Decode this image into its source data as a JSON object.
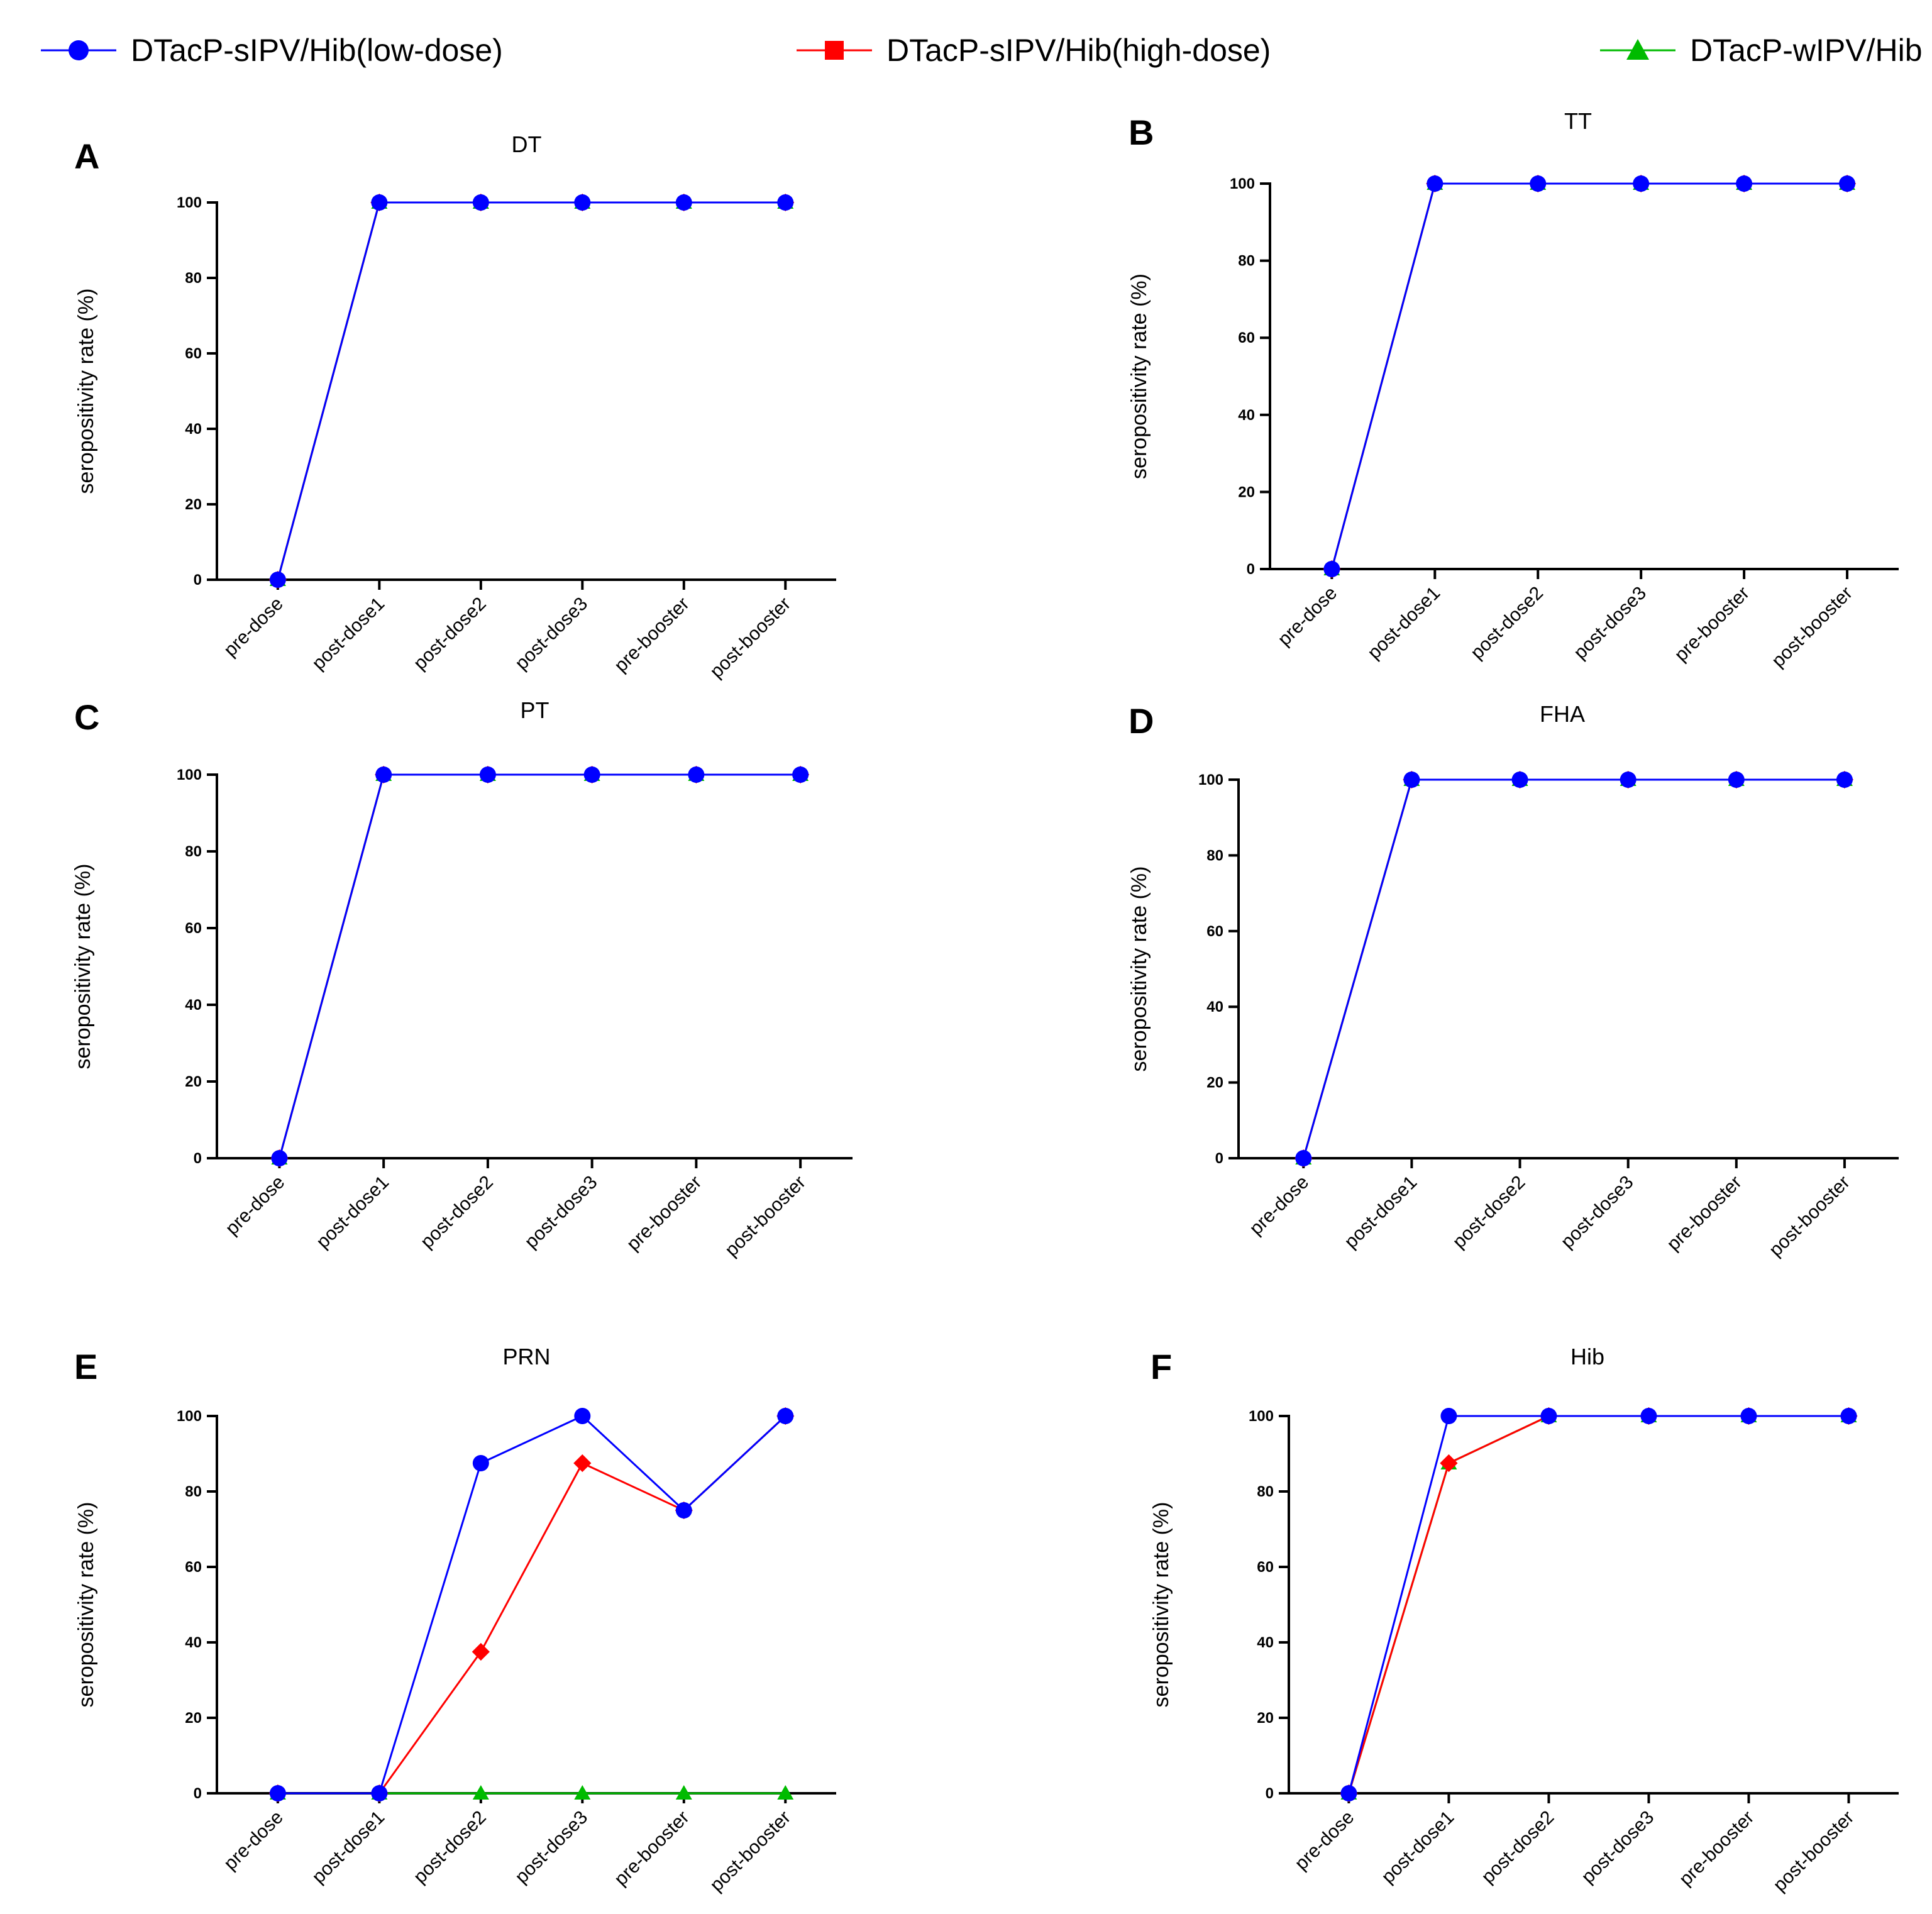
{
  "legend": [
    {
      "name": "DTacP-sIPV/Hib(low-dose)",
      "color": "#0000ff",
      "marker": "circle"
    },
    {
      "name": "DTacP-sIPV/Hib(high-dose)",
      "color": "#ff0000",
      "marker": "square"
    },
    {
      "name": "DTacP-wIPV/Hib",
      "color": "#00bb00",
      "marker": "triangle"
    }
  ],
  "chart_data": [
    {
      "type": "line",
      "panel": "A",
      "title": "DT",
      "xlabel": "",
      "ylabel": "seropositivity rate (%)",
      "categories": [
        "pre-dose",
        "post-dose1",
        "post-dose2",
        "post-dose3",
        "pre-booster",
        "post-booster"
      ],
      "ylim": [
        0,
        100
      ],
      "yticks": [
        0,
        20,
        40,
        60,
        80,
        100
      ],
      "series": [
        {
          "name": "DTacP-sIPV/Hib(low-dose)",
          "values": [
            0,
            100,
            100,
            100,
            100,
            100
          ]
        },
        {
          "name": "DTacP-sIPV/Hib(high-dose)",
          "values": [
            0,
            100,
            100,
            100,
            100,
            100
          ]
        },
        {
          "name": "DTacP-wIPV/Hib",
          "values": [
            0,
            100,
            100,
            100,
            100,
            100
          ]
        }
      ]
    },
    {
      "type": "line",
      "panel": "B",
      "title": "TT",
      "xlabel": "",
      "ylabel": "seropositivity rate (%)",
      "categories": [
        "pre-dose",
        "post-dose1",
        "post-dose2",
        "post-dose3",
        "pre-booster",
        "post-booster"
      ],
      "ylim": [
        0,
        100
      ],
      "yticks": [
        0,
        20,
        40,
        60,
        80,
        100
      ],
      "series": [
        {
          "name": "DTacP-sIPV/Hib(low-dose)",
          "values": [
            0,
            100,
            100,
            100,
            100,
            100
          ]
        },
        {
          "name": "DTacP-sIPV/Hib(high-dose)",
          "values": [
            0,
            100,
            100,
            100,
            100,
            100
          ]
        },
        {
          "name": "DTacP-wIPV/Hib",
          "values": [
            0,
            100,
            100,
            100,
            100,
            100
          ]
        }
      ]
    },
    {
      "type": "line",
      "panel": "C",
      "title": "PT",
      "xlabel": "",
      "ylabel": "seropositivity rate (%)",
      "categories": [
        "pre-dose",
        "post-dose1",
        "post-dose2",
        "post-dose3",
        "pre-booster",
        "post-booster"
      ],
      "ylim": [
        0,
        100
      ],
      "yticks": [
        0,
        20,
        40,
        60,
        80,
        100
      ],
      "series": [
        {
          "name": "DTacP-sIPV/Hib(low-dose)",
          "values": [
            0,
            100,
            100,
            100,
            100,
            100
          ]
        },
        {
          "name": "DTacP-sIPV/Hib(high-dose)",
          "values": [
            0,
            100,
            100,
            100,
            100,
            100
          ]
        },
        {
          "name": "DTacP-wIPV/Hib",
          "values": [
            0,
            100,
            100,
            100,
            100,
            100
          ]
        }
      ]
    },
    {
      "type": "line",
      "panel": "D",
      "title": "FHA",
      "xlabel": "",
      "ylabel": "seropositivity rate (%)",
      "categories": [
        "pre-dose",
        "post-dose1",
        "post-dose2",
        "post-dose3",
        "pre-booster",
        "post-booster"
      ],
      "ylim": [
        0,
        100
      ],
      "yticks": [
        0,
        20,
        40,
        60,
        80,
        100
      ],
      "series": [
        {
          "name": "DTacP-sIPV/Hib(low-dose)",
          "values": [
            0,
            100,
            100,
            100,
            100,
            100
          ]
        },
        {
          "name": "DTacP-sIPV/Hib(high-dose)",
          "values": [
            0,
            100,
            100,
            100,
            100,
            100
          ]
        },
        {
          "name": "DTacP-wIPV/Hib",
          "values": [
            0,
            100,
            100,
            100,
            100,
            100
          ]
        }
      ]
    },
    {
      "type": "line",
      "panel": "E",
      "title": "PRN",
      "xlabel": "",
      "ylabel": "seropositivity rate (%)",
      "categories": [
        "pre-dose",
        "post-dose1",
        "post-dose2",
        "post-dose3",
        "pre-booster",
        "post-booster"
      ],
      "ylim": [
        0,
        100
      ],
      "yticks": [
        0,
        20,
        40,
        60,
        80,
        100
      ],
      "series": [
        {
          "name": "DTacP-sIPV/Hib(low-dose)",
          "values": [
            0,
            0,
            87.5,
            100,
            75,
            100
          ]
        },
        {
          "name": "DTacP-sIPV/Hib(high-dose)",
          "values": [
            0,
            0,
            37.5,
            87.5,
            75,
            100
          ]
        },
        {
          "name": "DTacP-wIPV/Hib",
          "values": [
            0,
            0,
            0,
            0,
            0,
            0
          ]
        }
      ]
    },
    {
      "type": "line",
      "panel": "F",
      "title": "Hib",
      "xlabel": "",
      "ylabel": "seropositivity rate (%)",
      "categories": [
        "pre-dose",
        "post-dose1",
        "post-dose2",
        "post-dose3",
        "pre-booster",
        "post-booster"
      ],
      "ylim": [
        0,
        100
      ],
      "yticks": [
        0,
        20,
        40,
        60,
        80,
        100
      ],
      "series": [
        {
          "name": "DTacP-sIPV/Hib(low-dose)",
          "values": [
            0,
            100,
            100,
            100,
            100,
            100
          ]
        },
        {
          "name": "DTacP-sIPV/Hib(high-dose)",
          "values": [
            0,
            87.5,
            100,
            100,
            100,
            100
          ]
        },
        {
          "name": "DTacP-wIPV/Hib",
          "values": [
            0,
            87.5,
            100,
            100,
            100,
            100
          ]
        }
      ]
    }
  ]
}
